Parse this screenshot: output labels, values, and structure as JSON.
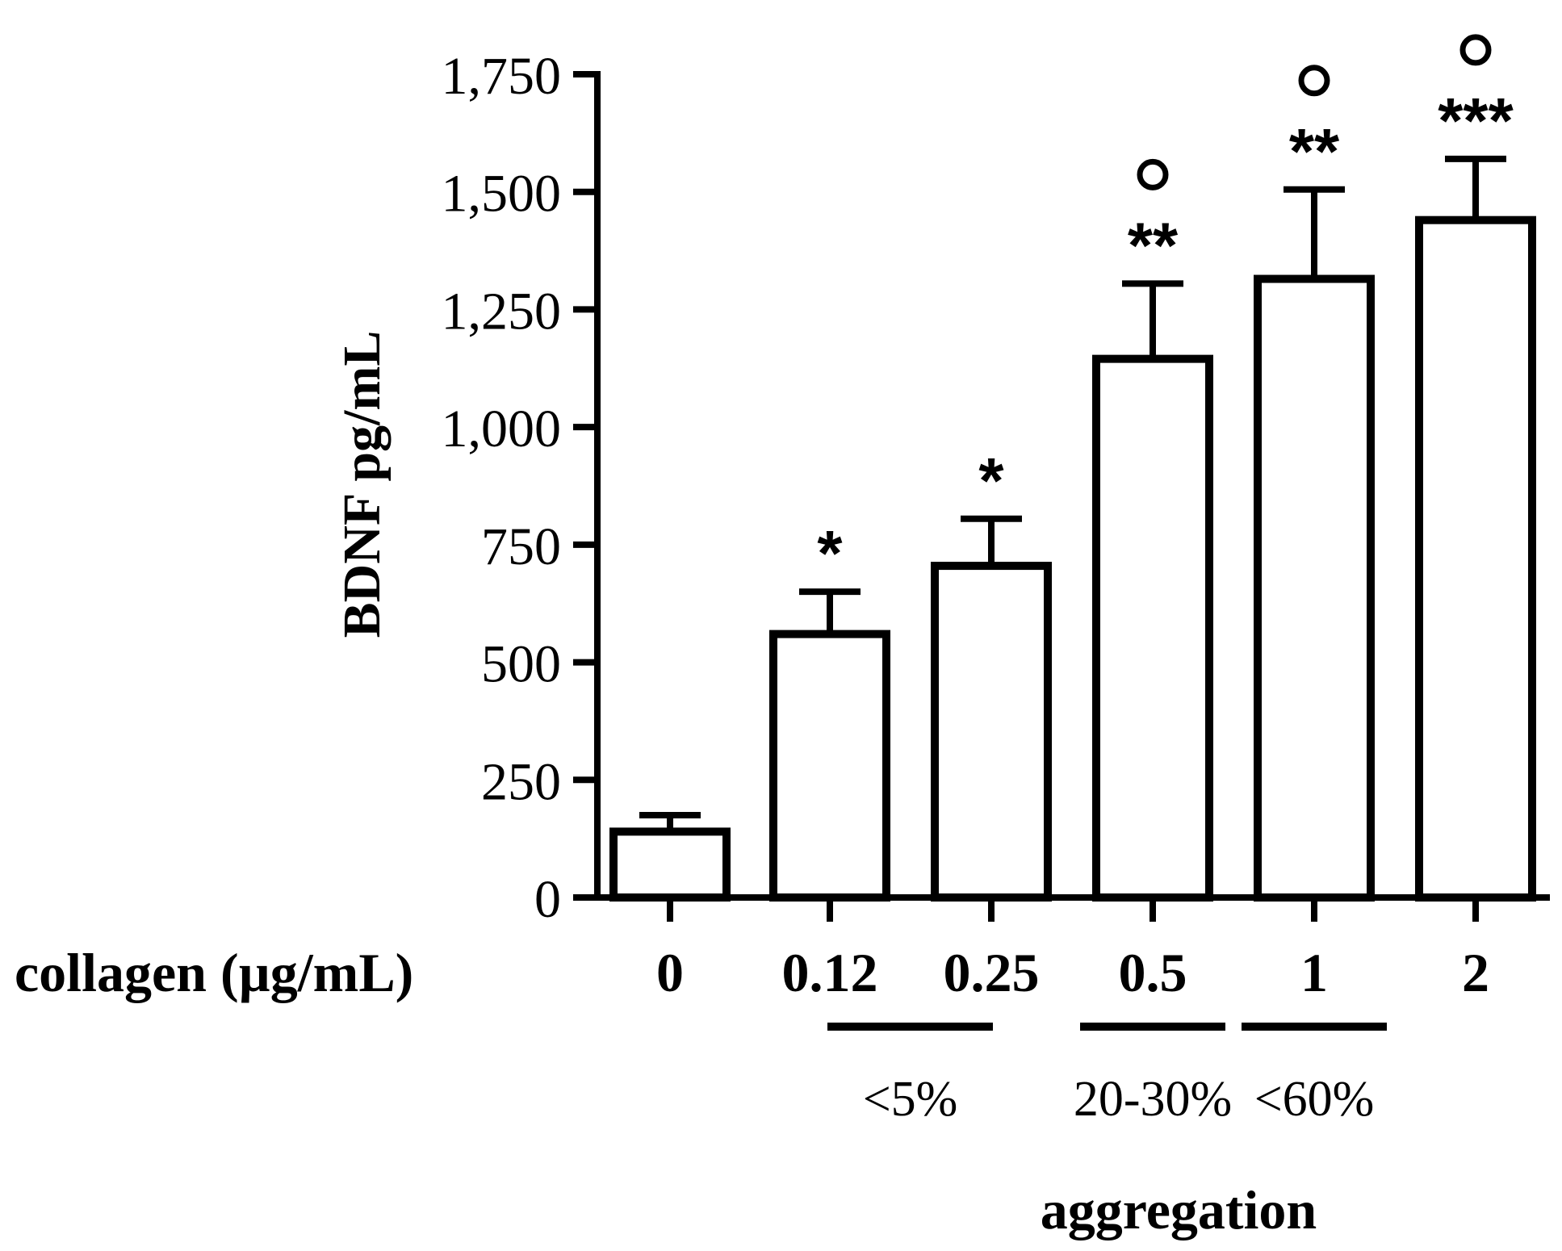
{
  "chart_data": {
    "type": "bar",
    "ylabel": "BDNF pg/mL",
    "xlabel": "collagen (µg/mL)",
    "ylim": [
      0,
      1750
    ],
    "yticks": [
      0,
      250,
      500,
      750,
      1000,
      1250,
      1500,
      1750
    ],
    "ytick_labels": [
      "0",
      "250",
      "500",
      "750",
      "1,000",
      "1,250",
      "1,500",
      "1,750"
    ],
    "categories": [
      "0",
      "0.12",
      "0.25",
      "0.5",
      "1",
      "2"
    ],
    "values": [
      140,
      560,
      705,
      1145,
      1315,
      1440
    ],
    "errors": [
      35,
      90,
      100,
      160,
      190,
      130
    ],
    "significance": [
      "",
      "*",
      "*",
      "**",
      "**",
      "***"
    ],
    "circle_markers": [
      false,
      false,
      false,
      true,
      true,
      true
    ],
    "groups": [
      {
        "label": "<5%",
        "categories": [
          "0.12",
          "0.25"
        ]
      },
      {
        "label": "20-30%",
        "categories": [
          "0.5"
        ]
      },
      {
        "label": "<60%",
        "categories": [
          "1"
        ]
      }
    ],
    "group_title": "aggregation",
    "bar_color": "#ffffff",
    "stroke_color": "#000000",
    "grid": false
  }
}
